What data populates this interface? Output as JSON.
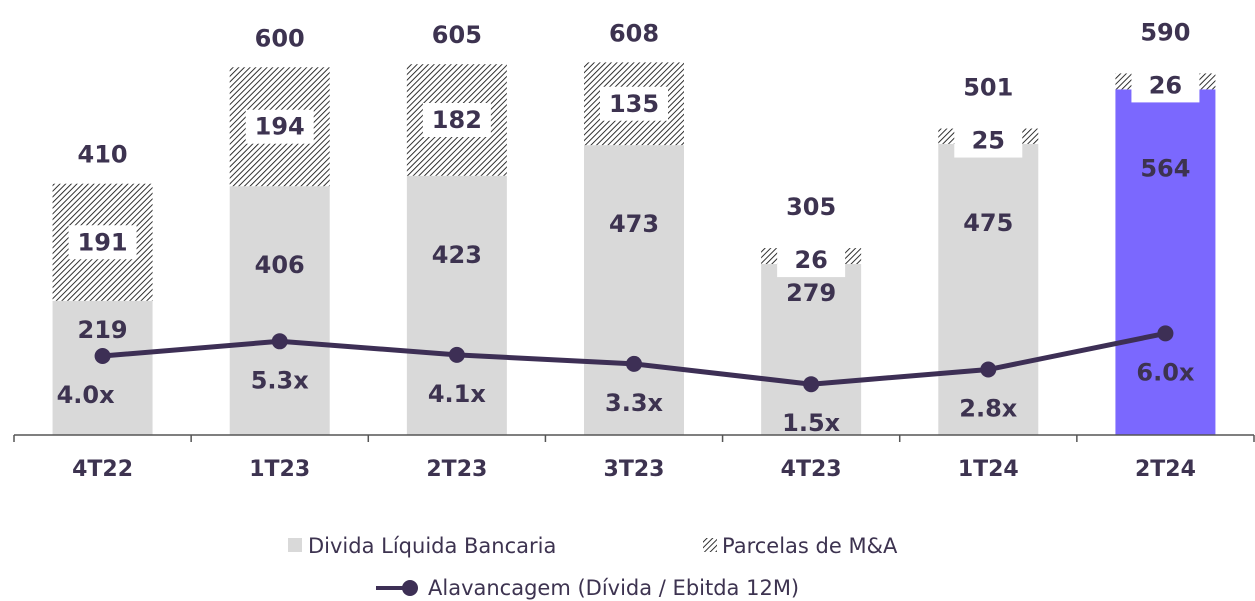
{
  "chart_data": {
    "type": "stacked_bar_line",
    "categories": [
      "4T22",
      "1T23",
      "2T23",
      "3T23",
      "4T23",
      "1T24",
      "2T24"
    ],
    "series": [
      {
        "name": "Divida Líquida Bancaria",
        "color": "#d9d9d9",
        "colors": [
          "#d9d9d9",
          "#d9d9d9",
          "#d9d9d9",
          "#d9d9d9",
          "#d9d9d9",
          "#d9d9d9",
          "#7b68fe"
        ],
        "values": [
          219,
          406,
          423,
          473,
          279,
          475,
          564
        ]
      },
      {
        "name": "Parcelas de M&A",
        "color": "#1a1a1a",
        "pattern": "hatch",
        "values": [
          191,
          194,
          182,
          135,
          26,
          25,
          26
        ]
      },
      {
        "name": "Alavancagem (Dívida / Ebitda 12M)",
        "type": "line",
        "axis": "y2",
        "color": "#3d2f55",
        "values": [
          4.0,
          5.3,
          4.1,
          3.3,
          1.5,
          2.8,
          6.0
        ],
        "value_labels": [
          "4.0x",
          "5.3x",
          "4.1x",
          "3.3x",
          "1.5x",
          "2.8x",
          "6.0x"
        ]
      }
    ],
    "totals": [
      410,
      600,
      605,
      608,
      305,
      501,
      590
    ],
    "ylim": [
      0,
      700
    ],
    "y2lim": [
      -3,
      35
    ]
  }
}
